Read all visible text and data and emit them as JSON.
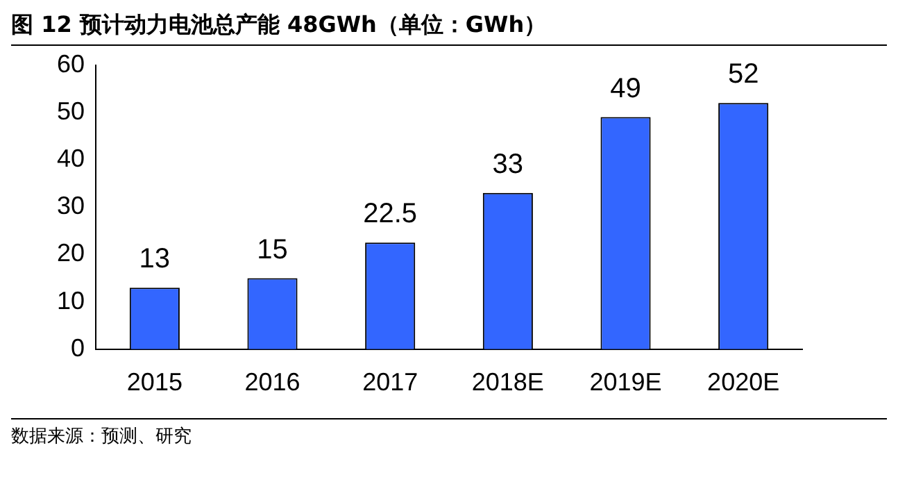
{
  "chart_data": {
    "type": "bar",
    "title": "图 12  预计动力电池总产能 48GWh（单位：GWh）",
    "categories": [
      "2015",
      "2016",
      "2017",
      "2018E",
      "2019E",
      "2020E"
    ],
    "values": [
      13,
      15,
      22.5,
      33,
      49,
      52
    ],
    "color": "#3366ff",
    "ylim": [
      0,
      60
    ],
    "yticks": [
      0,
      10,
      20,
      30,
      40,
      50,
      60
    ],
    "grid": false,
    "data_labels": true,
    "legend": false,
    "annotations": [
      "数据来源：预测、研究"
    ]
  }
}
